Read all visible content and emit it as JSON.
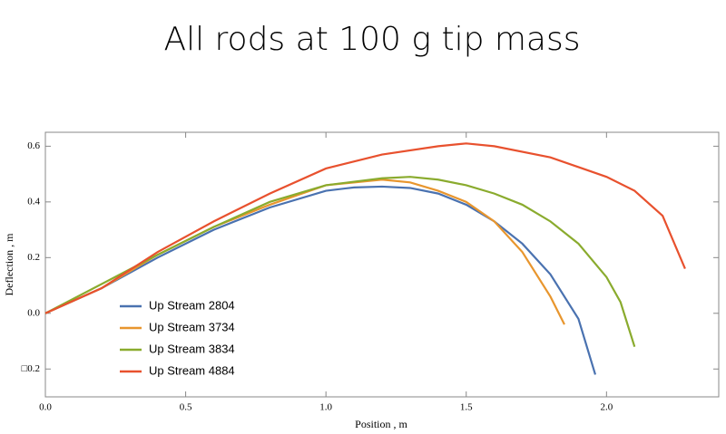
{
  "chart_data": {
    "type": "line",
    "title": "All rods at 100 g tip mass",
    "xlabel": "Position , m",
    "ylabel": "Deflection , m",
    "xlim": [
      0,
      2.4
    ],
    "ylim": [
      -0.3,
      0.65
    ],
    "xticks": [
      {
        "value": 0,
        "label": "0.0"
      },
      0.5,
      {
        "value": 1,
        "label": "1.0"
      },
      1.5,
      {
        "value": 2,
        "label": "2.0"
      }
    ],
    "yticks": [
      {
        "value": -0.2,
        "label": "□0.2"
      },
      {
        "value": 0,
        "label": "0.0"
      },
      0.2,
      0.4,
      0.6
    ],
    "legend": "lower left",
    "series": [
      {
        "name": "Up Stream 2804",
        "color": "#4a72b0",
        "x": [
          0,
          0.2,
          0.4,
          0.6,
          0.8,
          1.0,
          1.1,
          1.2,
          1.3,
          1.4,
          1.5,
          1.6,
          1.7,
          1.8,
          1.9,
          1.96
        ],
        "values": [
          0,
          0.09,
          0.2,
          0.3,
          0.38,
          0.44,
          0.452,
          0.455,
          0.45,
          0.43,
          0.39,
          0.33,
          0.25,
          0.14,
          -0.02,
          -0.22
        ]
      },
      {
        "name": "Up Stream 3734",
        "color": "#e8962e",
        "x": [
          0,
          0.2,
          0.4,
          0.6,
          0.8,
          1.0,
          1.2,
          1.3,
          1.4,
          1.5,
          1.6,
          1.7,
          1.8,
          1.85
        ],
        "values": [
          0,
          0.09,
          0.21,
          0.31,
          0.39,
          0.46,
          0.48,
          0.47,
          0.44,
          0.4,
          0.33,
          0.22,
          0.06,
          -0.04
        ]
      },
      {
        "name": "Up Stream 3834",
        "color": "#8aab2e",
        "x": [
          0,
          0.4,
          0.6,
          0.8,
          1.0,
          1.2,
          1.3,
          1.4,
          1.5,
          1.6,
          1.7,
          1.8,
          1.9,
          2.0,
          2.05,
          2.1
        ],
        "values": [
          0,
          0.21,
          0.31,
          0.4,
          0.46,
          0.485,
          0.49,
          0.48,
          0.46,
          0.43,
          0.39,
          0.33,
          0.25,
          0.13,
          0.04,
          -0.12
        ]
      },
      {
        "name": "Up Stream 4884",
        "color": "#e8512e",
        "x": [
          0,
          0.2,
          0.4,
          0.6,
          0.8,
          1.0,
          1.2,
          1.4,
          1.5,
          1.6,
          1.8,
          2.0,
          2.1,
          2.2,
          2.28
        ],
        "values": [
          0,
          0.09,
          0.22,
          0.33,
          0.43,
          0.52,
          0.57,
          0.6,
          0.61,
          0.6,
          0.56,
          0.49,
          0.44,
          0.35,
          0.16
        ]
      }
    ]
  }
}
